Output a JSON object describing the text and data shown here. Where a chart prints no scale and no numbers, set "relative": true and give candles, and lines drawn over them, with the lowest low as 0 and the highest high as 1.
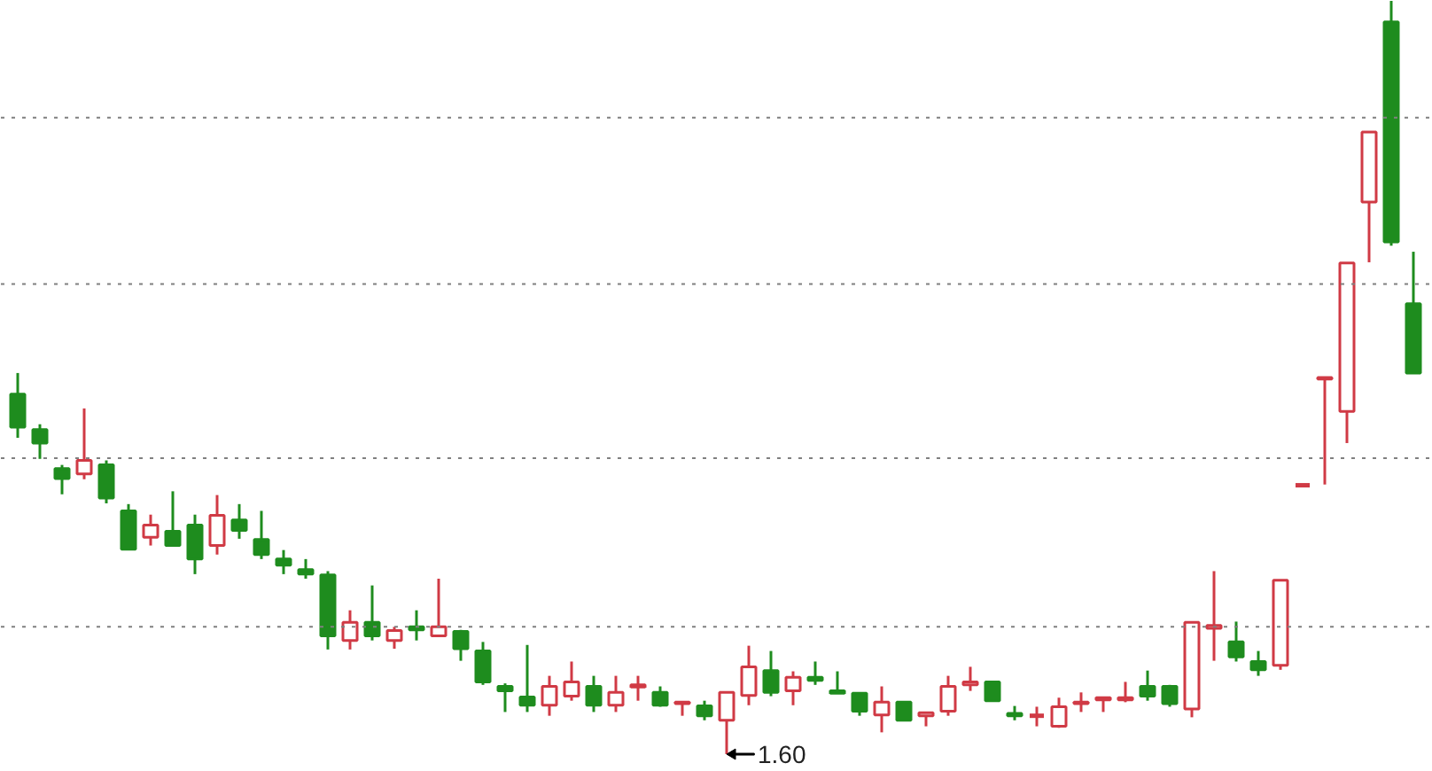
{
  "chart_data": {
    "type": "candlestick",
    "relative": true,
    "categories": [
      null,
      null,
      null,
      null,
      null,
      null,
      null,
      null,
      null,
      null,
      null,
      null,
      null,
      null,
      null,
      null,
      null,
      null,
      null,
      null,
      null,
      null,
      null,
      null,
      null,
      null,
      null,
      null,
      null,
      null,
      null,
      null,
      null,
      null,
      null,
      null,
      null,
      null,
      null,
      null,
      null,
      null,
      null,
      null,
      null,
      null,
      null,
      null,
      null,
      null,
      null,
      null,
      null,
      null,
      null,
      null,
      null,
      null,
      null,
      null,
      null,
      null,
      null,
      null
    ],
    "ohlc": [
      [
        0.478,
        0.506,
        0.42,
        0.434
      ],
      [
        0.431,
        0.438,
        0.392,
        0.413
      ],
      [
        0.379,
        0.384,
        0.345,
        0.366
      ],
      [
        0.372,
        0.459,
        0.365,
        0.39
      ],
      [
        0.384,
        0.39,
        0.333,
        0.34
      ],
      [
        0.323,
        0.332,
        0.271,
        0.272
      ],
      [
        0.288,
        0.318,
        0.277,
        0.304
      ],
      [
        0.296,
        0.349,
        0.277,
        0.277
      ],
      [
        0.304,
        0.318,
        0.239,
        0.259
      ],
      [
        0.277,
        0.344,
        0.265,
        0.317
      ],
      [
        0.311,
        0.332,
        0.286,
        0.297
      ],
      [
        0.285,
        0.323,
        0.259,
        0.265
      ],
      [
        0.259,
        0.271,
        0.239,
        0.251
      ],
      [
        0.245,
        0.259,
        0.233,
        0.239
      ],
      [
        0.238,
        0.243,
        0.139,
        0.157
      ],
      [
        0.151,
        0.191,
        0.139,
        0.175
      ],
      [
        0.175,
        0.224,
        0.151,
        0.157
      ],
      [
        0.151,
        0.169,
        0.14,
        0.164
      ],
      [
        0.169,
        0.191,
        0.151,
        0.165
      ],
      [
        0.157,
        0.233,
        0.157,
        0.169
      ],
      [
        0.163,
        0.165,
        0.124,
        0.14
      ],
      [
        0.137,
        0.149,
        0.092,
        0.096
      ],
      [
        0.09,
        0.094,
        0.056,
        0.084
      ],
      [
        0.076,
        0.145,
        0.056,
        0.065
      ],
      [
        0.065,
        0.104,
        0.051,
        0.09
      ],
      [
        0.077,
        0.123,
        0.071,
        0.096
      ],
      [
        0.09,
        0.104,
        0.056,
        0.065
      ],
      [
        0.065,
        0.104,
        0.056,
        0.082
      ],
      [
        0.089,
        0.104,
        0.071,
        0.092
      ],
      [
        0.082,
        0.09,
        0.063,
        0.065
      ],
      [
        0.067,
        0.069,
        0.051,
        0.069
      ],
      [
        0.064,
        0.071,
        0.045,
        0.051
      ],
      [
        0.045,
        0.082,
        0,
        0.082
      ],
      [
        0.078,
        0.144,
        0.065,
        0.116
      ],
      [
        0.111,
        0.137,
        0.077,
        0.082
      ],
      [
        0.084,
        0.11,
        0.065,
        0.102
      ],
      [
        0.102,
        0.123,
        0.092,
        0.098
      ],
      [
        0.084,
        0.11,
        0.081,
        0.081
      ],
      [
        0.081,
        0.082,
        0.051,
        0.057
      ],
      [
        0.052,
        0.09,
        0.029,
        0.069
      ],
      [
        0.069,
        0.069,
        0.045,
        0.045
      ],
      [
        0.051,
        0.055,
        0.037,
        0.055
      ],
      [
        0.057,
        0.104,
        0.051,
        0.09
      ],
      [
        0.092,
        0.116,
        0.084,
        0.096
      ],
      [
        0.096,
        0.096,
        0.071,
        0.071
      ],
      [
        0.054,
        0.064,
        0.045,
        0.051
      ],
      [
        0.049,
        0.063,
        0.037,
        0.051
      ],
      [
        0.037,
        0.075,
        0.035,
        0.063
      ],
      [
        0.067,
        0.082,
        0.056,
        0.069
      ],
      [
        0.072,
        0.075,
        0.056,
        0.075
      ],
      [
        0.072,
        0.096,
        0.069,
        0.075
      ],
      [
        0.09,
        0.111,
        0.071,
        0.077
      ],
      [
        0.09,
        0.092,
        0.063,
        0.067
      ],
      [
        0.06,
        0.175,
        0.049,
        0.175
      ],
      [
        0.167,
        0.243,
        0.124,
        0.171
      ],
      [
        0.149,
        0.176,
        0.123,
        0.129
      ],
      [
        0.123,
        0.137,
        0.104,
        0.112
      ],
      [
        0.118,
        0.231,
        0.112,
        0.231
      ],
      [
        0.357,
        0.357,
        0.357,
        0.357
      ],
      [
        0.498,
        0.5,
        0.358,
        0.5
      ],
      [
        0.455,
        0.652,
        0.413,
        0.652
      ],
      [
        0.733,
        0.826,
        0.653,
        0.826
      ],
      [
        0.972,
        1,
        0.675,
        0.68
      ],
      [
        0.598,
        0.667,
        0.506,
        0.506
      ]
    ],
    "colors": [
      "#1e8c1e",
      "#1e8c1e",
      "#1e8c1e",
      "#d03a45",
      "#1e8c1e",
      "#1e8c1e",
      "#d03a45",
      "#1e8c1e",
      "#1e8c1e",
      "#d03a45",
      "#1e8c1e",
      "#1e8c1e",
      "#1e8c1e",
      "#1e8c1e",
      "#1e8c1e",
      "#d03a45",
      "#1e8c1e",
      "#d03a45",
      "#1e8c1e",
      "#d03a45",
      "#1e8c1e",
      "#1e8c1e",
      "#1e8c1e",
      "#1e8c1e",
      "#d03a45",
      "#d03a45",
      "#1e8c1e",
      "#d03a45",
      "#d03a45",
      "#1e8c1e",
      "#d03a45",
      "#1e8c1e",
      "#d03a45",
      "#d03a45",
      "#1e8c1e",
      "#d03a45",
      "#1e8c1e",
      "#1e8c1e",
      "#1e8c1e",
      "#d03a45",
      "#1e8c1e",
      "#d03a45",
      "#d03a45",
      "#d03a45",
      "#1e8c1e",
      "#1e8c1e",
      "#d03a45",
      "#d03a45",
      "#d03a45",
      "#d03a45",
      "#d03a45",
      "#1e8c1e",
      "#1e8c1e",
      "#d03a45",
      "#d03a45",
      "#1e8c1e",
      "#1e8c1e",
      "#d03a45",
      "#d03a45",
      "#d03a45",
      "#d03a45",
      "#d03a45",
      "#1e8c1e",
      "#1e8c1e"
    ],
    "ref_lines": [
      {
        "axis": "y",
        "value": 0.845,
        "color": "#808080",
        "line_style": "dotted"
      },
      {
        "axis": "y",
        "value": 0.624,
        "color": "#808080",
        "line_style": "dotted"
      },
      {
        "axis": "y",
        "value": 0.393,
        "color": "#808080",
        "line_style": "dotted"
      },
      {
        "axis": "y",
        "value": 0.169,
        "color": "#808080",
        "line_style": "dotted"
      }
    ],
    "annotations": [
      "1.60"
    ]
  }
}
